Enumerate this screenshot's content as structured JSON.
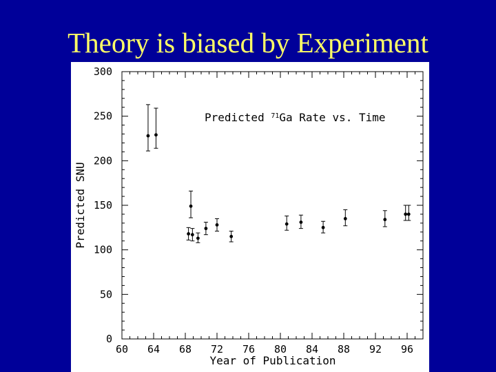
{
  "slide": {
    "title": "Theory is biased by Experiment",
    "title_color": "#ffff66",
    "background_color": "#000099"
  },
  "chart_data": {
    "type": "scatter",
    "annotation": {
      "prefix": "Predicted ",
      "superscript": "71",
      "suffix": "Ga Rate vs. Time"
    },
    "xlabel": "Year of Publication",
    "ylabel": "Predicted SNU",
    "xlim": [
      60,
      98
    ],
    "ylim": [
      0,
      300
    ],
    "x_ticks": [
      60,
      64,
      68,
      72,
      76,
      80,
      84,
      88,
      92,
      96
    ],
    "y_ticks": [
      0,
      50,
      100,
      150,
      200,
      250,
      300
    ],
    "grid": false,
    "error_bars": true,
    "series": [
      {
        "points": [
          {
            "x": 63.3,
            "y": 228,
            "lo": 211,
            "hi": 263
          },
          {
            "x": 64.3,
            "y": 229,
            "lo": 214,
            "hi": 259
          },
          {
            "x": 68.4,
            "y": 118,
            "lo": 111,
            "hi": 125
          },
          {
            "x": 68.7,
            "y": 149,
            "lo": 136,
            "hi": 166
          },
          {
            "x": 68.9,
            "y": 117,
            "lo": 110,
            "hi": 124
          },
          {
            "x": 69.6,
            "y": 113,
            "lo": 108,
            "hi": 119
          },
          {
            "x": 70.6,
            "y": 124,
            "lo": 117,
            "hi": 131
          },
          {
            "x": 72.0,
            "y": 128,
            "lo": 121,
            "hi": 135
          },
          {
            "x": 73.8,
            "y": 115,
            "lo": 109,
            "hi": 121
          },
          {
            "x": 80.8,
            "y": 129,
            "lo": 122,
            "hi": 138
          },
          {
            "x": 82.6,
            "y": 131,
            "lo": 124,
            "hi": 139
          },
          {
            "x": 85.4,
            "y": 125,
            "lo": 119,
            "hi": 132
          },
          {
            "x": 88.2,
            "y": 135,
            "lo": 127,
            "hi": 145
          },
          {
            "x": 93.2,
            "y": 134,
            "lo": 126,
            "hi": 144
          },
          {
            "x": 95.8,
            "y": 140,
            "lo": 133,
            "hi": 150
          },
          {
            "x": 96.2,
            "y": 140,
            "lo": 133,
            "hi": 150
          }
        ]
      }
    ]
  }
}
